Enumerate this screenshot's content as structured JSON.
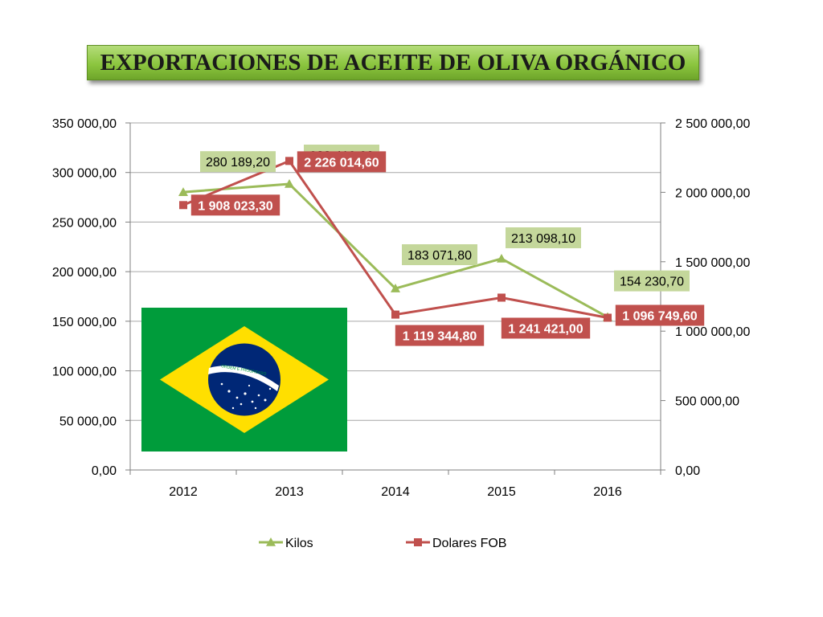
{
  "title": "EXPORTACIONES DE ACEITE DE OLIVA ORGÁNICO",
  "chart_data": {
    "type": "line",
    "title": "EXPORTACIONES DE ACEITE DE OLIVA ORGÁNICO",
    "categories": [
      "2012",
      "2013",
      "2014",
      "2015",
      "2016"
    ],
    "y_axis_left": {
      "range": [
        0,
        350000
      ],
      "ticks": [
        0,
        50000,
        100000,
        150000,
        200000,
        250000,
        300000,
        350000
      ],
      "tick_labels": [
        "0,00",
        "50 000,00",
        "100 000,00",
        "150 000,00",
        "200 000,00",
        "250 000,00",
        "300 000,00",
        "350 000,00"
      ]
    },
    "y_axis_right": {
      "range": [
        0,
        2500000
      ],
      "ticks": [
        0,
        500000,
        1000000,
        1500000,
        2000000,
        2500000
      ],
      "tick_labels": [
        "0,00",
        "500 000,00",
        "1 000 000,00",
        "1 500 000,00",
        "2 000 000,00",
        "2 500 000,00"
      ]
    },
    "grid": true,
    "legend_position": "bottom",
    "series": [
      {
        "name": "Kilos",
        "axis": "left",
        "color": "#9bbb59",
        "marker": "triangle",
        "values": [
          280189.2,
          288419.0,
          183071.8,
          213098.1,
          154230.7
        ],
        "data_labels": [
          "280 189,20",
          "288 419,00",
          "183 071,80",
          "213 098,10",
          "154 230,70"
        ]
      },
      {
        "name": "Dolares FOB",
        "axis": "right",
        "color": "#c0504d",
        "marker": "square",
        "values": [
          1908023.3,
          2226014.6,
          1119344.8,
          1241421.0,
          1096749.6
        ],
        "data_labels": [
          "1 908 023,30",
          "2 226 014,60",
          "1 119 344,80",
          "1 241 421,00",
          "1 096 749,60"
        ]
      }
    ]
  },
  "colors": {
    "kilos_label_bg": "#c4d79b",
    "dolares_label_bg": "#c0504d",
    "grid": "#a6a6a6",
    "flag_green": "#009c3b",
    "flag_yellow": "#ffdf00",
    "flag_blue": "#002776"
  },
  "flag": {
    "icon": "brazil-flag-icon",
    "motto": "ORDEM E PROGRESSO"
  }
}
